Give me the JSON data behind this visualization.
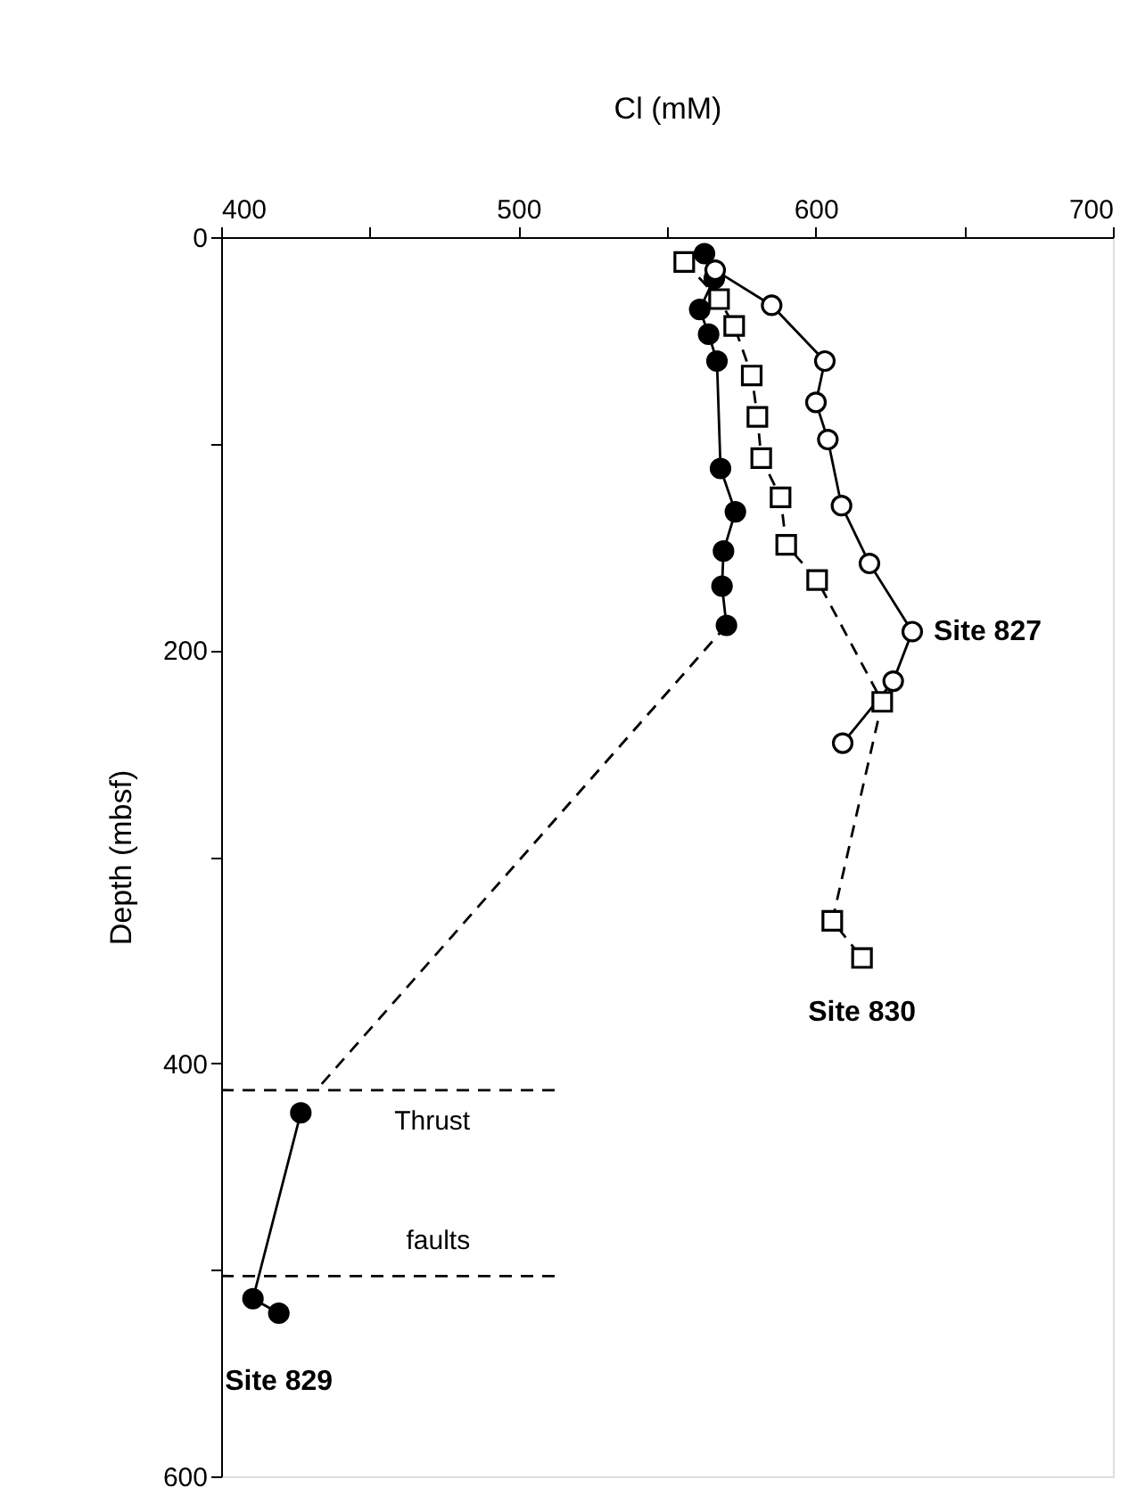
{
  "chart_data": {
    "type": "line",
    "xlabel": "Cl (mM)",
    "ylabel": "Depth (mbsf)",
    "xlim": [
      400,
      700
    ],
    "xticks": [
      400,
      {
        "value": 450,
        "label": null
      },
      500,
      {
        "value": 550,
        "label": null
      },
      600,
      {
        "value": 650,
        "label": null
      },
      700
    ],
    "ylim": [
      600,
      0
    ],
    "yticks": [
      0,
      {
        "value": 100,
        "label": null
      },
      200,
      {
        "value": 300,
        "label": null
      },
      400,
      {
        "value": 500,
        "label": null
      },
      600
    ],
    "grid": false,
    "series": [
      {
        "color": "#000000",
        "colors": [
          "#000000",
          "#000000",
          "#000000",
          "#000000",
          "#000000",
          "#000000",
          "#000000",
          "#000000",
          "#000000",
          "#000000"
        ],
        "marker": "circle",
        "line_style": "solid",
        "x": [
          562.6,
          565.9,
          561,
          564,
          566.8,
          568,
          573,
          569,
          568.5,
          570
        ],
        "values": [
          8,
          20,
          35,
          47,
          60,
          112,
          133,
          152,
          169,
          188
        ]
      },
      {
        "color": "#000000",
        "colors": [
          "#000000",
          "#000000",
          "#000000"
        ],
        "marker": "circle",
        "line_style": "solid",
        "x": [
          426.8,
          410.7,
          419.4
        ],
        "values": [
          424,
          514,
          521
        ]
      },
      {
        "color": "#000000",
        "marker": "none",
        "line_style": "dashed",
        "x": [
          570,
          432
        ],
        "values": [
          188,
          413
        ]
      },
      {
        "color": "#000000",
        "colors": [
          "#ffffff",
          "#ffffff",
          "#ffffff",
          "#ffffff",
          "#ffffff",
          "#ffffff",
          "#ffffff",
          "#ffffff",
          "#ffffff",
          "#ffffff"
        ],
        "marker": "circle",
        "line_style": "solid",
        "x": [
          566.2,
          585.2,
          603.1,
          600.1,
          604.1,
          608.7,
          618.1,
          632.5,
          626.1,
          609.1
        ],
        "values": [
          16,
          33,
          60,
          80,
          98,
          130,
          158,
          191,
          215,
          245
        ]
      },
      {
        "color": "#000000",
        "colors": [
          "#ffffff",
          "#ffffff",
          "#ffffff",
          "#ffffff",
          "#ffffff",
          "#ffffff",
          "#ffffff",
          "#ffffff",
          "#ffffff",
          "#ffffff",
          "#ffffff",
          "#ffffff"
        ],
        "marker": "square",
        "line_style": "dashed",
        "x": [
          555.8,
          567.5,
          572.6,
          578.5,
          580.4,
          581.7,
          588.2,
          590.1,
          600.5,
          622.4,
          605.6,
          615.6
        ],
        "values": [
          12,
          30,
          43,
          67,
          87,
          107,
          126,
          149,
          166,
          225,
          331,
          349
        ]
      },
      {
        "color": "#000000",
        "marker": "none",
        "line_style": "dashed",
        "x": [
          400,
          513
        ],
        "values": [
          413,
          413
        ]
      },
      {
        "color": "#000000",
        "marker": "none",
        "line_style": "dashed",
        "x": [
          400,
          513
        ],
        "values": [
          503,
          503
        ]
      }
    ],
    "annotations": [
      {
        "text": "Site 827",
        "x": 632.5,
        "y": 191
      },
      {
        "text": "Site 830",
        "x": 615.6,
        "y": 349
      },
      {
        "text": "Site 829",
        "x": 419.4,
        "y": 521
      },
      {
        "text": "Thrust",
        "x": 471,
        "y": 413
      },
      {
        "text": "faults",
        "x": 473,
        "y": 503
      }
    ]
  }
}
